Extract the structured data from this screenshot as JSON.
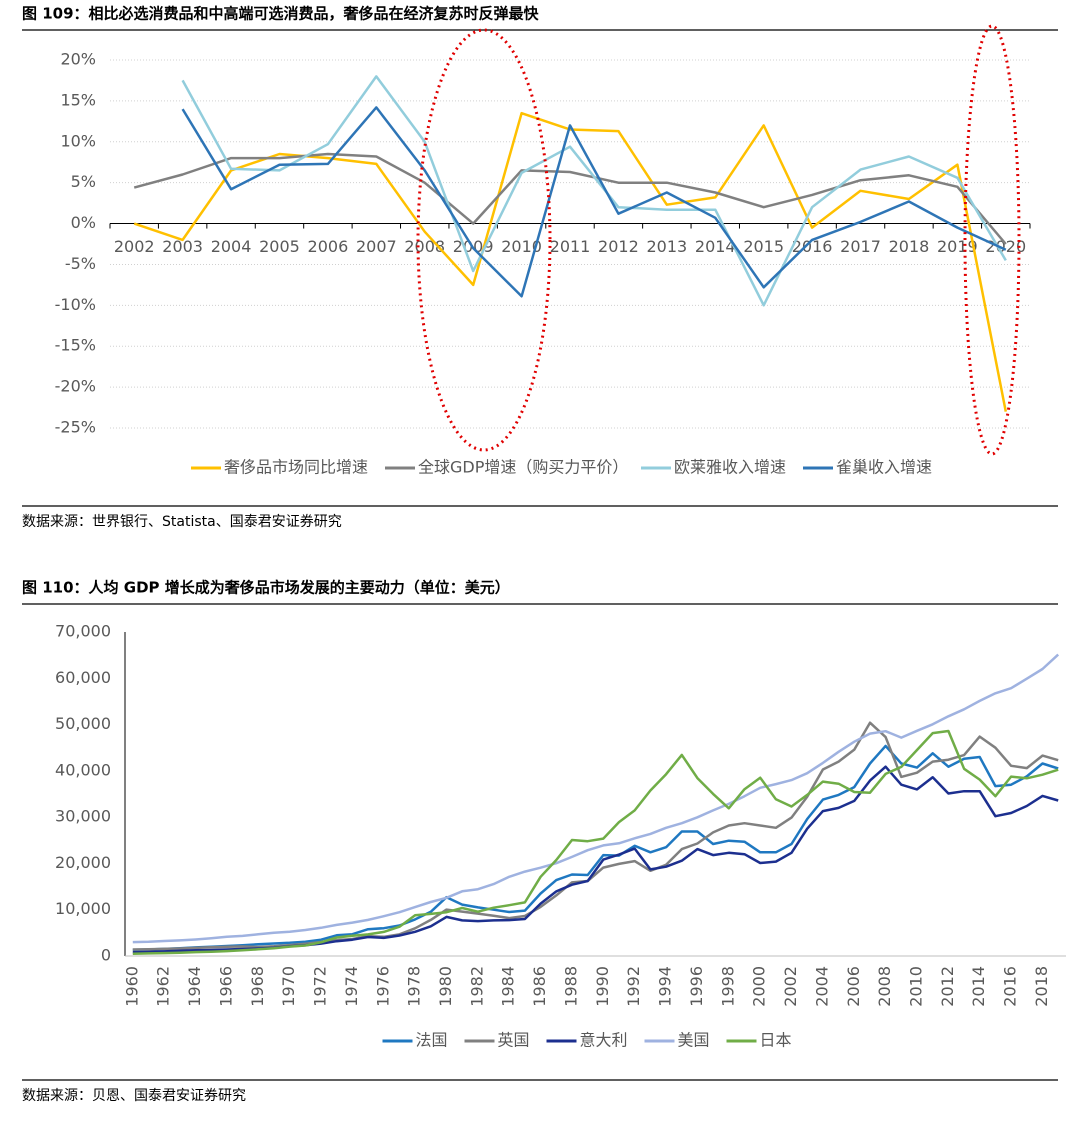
{
  "chart_data": [
    {
      "type": "line",
      "title": "图 109：相比必选消费品和中高端可选消费品，奢侈品在经济复苏时反弹最快",
      "source": "数据来源：世界银行、Statista、国泰君安证券研究",
      "categories": [
        "2002",
        "2003",
        "2004",
        "2005",
        "2006",
        "2007",
        "2008",
        "2009",
        "2010",
        "2011",
        "2012",
        "2013",
        "2014",
        "2015",
        "2016",
        "2017",
        "2018",
        "2019",
        "2020"
      ],
      "series": [
        {
          "name": "奢侈品市场同比增速",
          "color": "#ffc000",
          "values": [
            0,
            -2,
            6.5,
            8.5,
            8,
            7.3,
            -1,
            -7.5,
            13.5,
            11.5,
            11.3,
            2.3,
            3.2,
            12,
            -0.5,
            4,
            3,
            7.2,
            -23
          ]
        },
        {
          "name": "全球GDP增速（购买力平价）",
          "color": "#808080",
          "values": [
            4.4,
            6,
            8,
            8,
            8.5,
            8.2,
            5,
            0,
            6.5,
            6.3,
            5,
            5,
            3.8,
            2,
            3.5,
            5.3,
            5.9,
            4.5,
            -2.5
          ]
        },
        {
          "name": "欧莱雅收入增速",
          "color": "#92cddc",
          "values": [
            null,
            17.5,
            6.7,
            6.5,
            9.7,
            18,
            10,
            -5.8,
            6.2,
            9.4,
            2,
            1.7,
            1.7,
            -10,
            2,
            6.6,
            8.2,
            5.6,
            -4.5
          ]
        },
        {
          "name": "雀巢收入增速",
          "color": "#2e75b6",
          "values": [
            null,
            14,
            4.2,
            7.2,
            7.3,
            14.2,
            6.5,
            -3,
            -8.9,
            12,
            1.2,
            3.8,
            0.7,
            -7.8,
            -2,
            0.2,
            2.7,
            -0.5,
            -3.2
          ]
        }
      ],
      "ylim": [
        -25,
        20
      ],
      "yticks": [
        {
          "value": -25,
          "label": "-25%"
        },
        {
          "value": -20,
          "label": "-20%"
        },
        {
          "value": -15,
          "label": "-15%"
        },
        {
          "value": -10,
          "label": "-10%"
        },
        {
          "value": -5,
          "label": "-5%"
        },
        {
          "value": 0,
          "label": "0%"
        },
        {
          "value": 5,
          "label": "5%"
        },
        {
          "value": 10,
          "label": "10%"
        },
        {
          "value": 15,
          "label": "15%"
        },
        {
          "value": 20,
          "label": "20%"
        }
      ],
      "grid": true
    },
    {
      "type": "line",
      "title": "图 110：人均 GDP 增长成为奢侈品市场发展的主要动力（单位：美元）",
      "source": "数据来源：贝恩、国泰君安证券研究",
      "categories": [
        "1960",
        null,
        "1962",
        null,
        "1964",
        null,
        "1966",
        null,
        "1968",
        null,
        "1970",
        null,
        "1972",
        null,
        "1974",
        null,
        "1976",
        null,
        "1978",
        null,
        "1980",
        null,
        "1982",
        null,
        "1984",
        null,
        "1986",
        null,
        "1988",
        null,
        "1990",
        null,
        "1992",
        null,
        "1994",
        null,
        "1996",
        null,
        "1998",
        null,
        "2000",
        null,
        "2002",
        null,
        "2004",
        null,
        "2006",
        null,
        "2008",
        null,
        "2010",
        null,
        "2012",
        null,
        "2014",
        null,
        "2016",
        null,
        "2018",
        null
      ],
      "series": [
        {
          "name": "法国",
          "color": "#1f78c1",
          "values": [
            1340,
            1410,
            1540,
            1680,
            1860,
            2010,
            2170,
            2330,
            2520,
            2700,
            2860,
            3090,
            3520,
            4480,
            4720,
            5800,
            6010,
            6590,
            7900,
            9560,
            12700,
            11100,
            10500,
            10000,
            9500,
            9800,
            13500,
            16400,
            17600,
            17500,
            21800,
            21700,
            23800,
            22400,
            23500,
            26900,
            26900,
            24200,
            24900,
            24700,
            22400,
            22400,
            24200,
            29600,
            33800,
            34800,
            36500,
            41600,
            45400,
            41600,
            40700,
            43800,
            40900,
            42600,
            43000,
            36700,
            37000,
            38800,
            41600,
            40500
          ]
        },
        {
          "name": "英国",
          "color": "#808080",
          "values": [
            1400,
            1470,
            1530,
            1610,
            1750,
            1870,
            1990,
            2060,
            1950,
            2100,
            2350,
            2650,
            3030,
            3430,
            3670,
            4300,
            4140,
            4680,
            5980,
            7800,
            10030,
            9600,
            9150,
            8690,
            8180,
            8650,
            10600,
            13100,
            15900,
            16200,
            19100,
            19900,
            20500,
            18400,
            19700,
            23100,
            24300,
            26700,
            28200,
            28700,
            28200,
            27700,
            29900,
            34400,
            40300,
            42000,
            44600,
            50400,
            47300,
            38700,
            39600,
            42000,
            42400,
            43400,
            47400,
            45000,
            41100,
            40600,
            43300,
            42300
          ]
        },
        {
          "name": "意大利",
          "color": "#1c2f8f",
          "values": [
            804,
            887,
            990,
            1126,
            1222,
            1304,
            1401,
            1516,
            1631,
            1771,
            2107,
            2303,
            2672,
            3205,
            3527,
            4103,
            3914,
            4421,
            5238,
            6419,
            8457,
            7683,
            7537,
            7702,
            7764,
            7991,
            11316,
            13958,
            15404,
            16210,
            20826,
            21900,
            23200,
            18700,
            19300,
            20600,
            23100,
            21800,
            22300,
            22000,
            20100,
            20400,
            22300,
            27500,
            31300,
            32000,
            33500,
            37900,
            40900,
            37000,
            36000,
            38600,
            35100,
            35600,
            35600,
            30200,
            30900,
            32400,
            34600,
            33600
          ]
        },
        {
          "name": "美国",
          "color": "#9fb2e0",
          "values": [
            3007,
            3067,
            3244,
            3375,
            3574,
            3828,
            4146,
            4336,
            4696,
            5032,
            5234,
            5609,
            6094,
            6726,
            7226,
            7801,
            8592,
            9453,
            10565,
            11674,
            12575,
            13976,
            14434,
            15544,
            17121,
            18237,
            19071,
            20039,
            21417,
            22857,
            23889,
            24342,
            25419,
            26387,
            27695,
            28691,
            29968,
            31459,
            32854,
            34516,
            36330,
            37134,
            37998,
            39490,
            41725,
            44123,
            46302,
            48050,
            48570,
            47195,
            48651,
            50066,
            51784,
            53291,
            55124,
            56763,
            57867,
            59915,
            62000,
            65120
          ]
        },
        {
          "name": "日本",
          "color": "#70ad47",
          "values": [
            479,
            564,
            633,
            717,
            835,
            920,
            1059,
            1229,
            1451,
            1669,
            2037,
            2272,
            2967,
            3997,
            4354,
            4659,
            5197,
            6335,
            8821,
            9105,
            9463,
            10360,
            9578,
            10425,
            10984,
            11584,
            17111,
            20745,
            25051,
            24813,
            25371,
            28925,
            31465,
            35766,
            39268,
            43440,
            38437,
            35022,
            31903,
            36027,
            38532,
            33846,
            32289,
            34808,
            37688,
            37218,
            35434,
            35275,
            39339,
            40855,
            44508,
            48168,
            48603,
            40455,
            38109,
            34524,
            38761,
            38387,
            39159,
            40247
          ]
        }
      ],
      "ylim": [
        0,
        70000
      ],
      "yticks": [
        0,
        {
          "value": 10000,
          "label": "10,000"
        },
        {
          "value": 20000,
          "label": "20,000"
        },
        {
          "value": 30000,
          "label": "30,000"
        },
        {
          "value": 40000,
          "label": "40,000"
        },
        {
          "value": 50000,
          "label": "50,000"
        },
        {
          "value": 60000,
          "label": "60,000"
        },
        {
          "value": 70000,
          "label": "70,000"
        }
      ],
      "grid": false
    }
  ]
}
